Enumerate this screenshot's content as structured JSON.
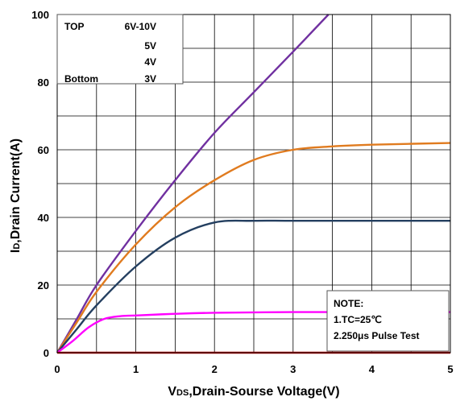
{
  "chart_data": {
    "type": "line",
    "xlabel_main": "V",
    "xlabel_sub": "DS",
    "xlabel_rest": ",Drain-Sourse Voltage(V)",
    "ylabel_main": "I",
    "ylabel_sub": "D",
    "ylabel_rest": ",Drain Current(A)",
    "xlim": [
      0,
      5
    ],
    "ylim": [
      0,
      100
    ],
    "xticks": [
      0,
      1,
      2,
      3,
      4,
      5
    ],
    "yticks": [
      0,
      20,
      40,
      60,
      80,
      100
    ],
    "grid": true,
    "legend": {
      "placement": "top-left",
      "rows": [
        {
          "label": "TOP",
          "value": "6V-10V"
        },
        {
          "label": "",
          "value": "5V"
        },
        {
          "label": "",
          "value": "4V"
        },
        {
          "label": "Bottom",
          "value": "3V"
        }
      ]
    },
    "note": {
      "placement": "bottom-right",
      "lines": [
        "NOTE:",
        "1.TC=25℃",
        "2.250μs Pulse Test"
      ]
    },
    "series": [
      {
        "color": "#7030a0",
        "x": [
          0,
          0.25,
          0.5,
          1.0,
          1.5,
          2.0,
          2.5,
          3.0,
          3.45
        ],
        "y": [
          0,
          10,
          20,
          36,
          51,
          65,
          77,
          89,
          100
        ]
      },
      {
        "color": "#e07b1f",
        "x": [
          0,
          0.25,
          0.5,
          1.0,
          1.5,
          2.0,
          2.5,
          3.0,
          3.5,
          4.0,
          5.0
        ],
        "y": [
          0,
          9,
          18,
          32,
          43,
          51,
          57,
          60,
          61,
          61.5,
          62
        ]
      },
      {
        "color": "#243f60",
        "x": [
          0,
          0.25,
          0.5,
          1.0,
          1.5,
          2.0,
          2.5,
          3.0,
          4.0,
          5.0
        ],
        "y": [
          0,
          7,
          14,
          25.5,
          34,
          38.5,
          39,
          39,
          39,
          39
        ]
      },
      {
        "color": "#ff00ff",
        "x": [
          0,
          0.2,
          0.4,
          0.6,
          0.8,
          1.0,
          1.5,
          2.0,
          3.0,
          4.0,
          5.0
        ],
        "y": [
          0,
          3.5,
          7.5,
          10,
          10.8,
          11,
          11.5,
          11.8,
          12,
          12,
          12
        ]
      },
      {
        "color": "#c00000",
        "x": [
          0,
          5
        ],
        "y": [
          0,
          0
        ]
      }
    ]
  }
}
